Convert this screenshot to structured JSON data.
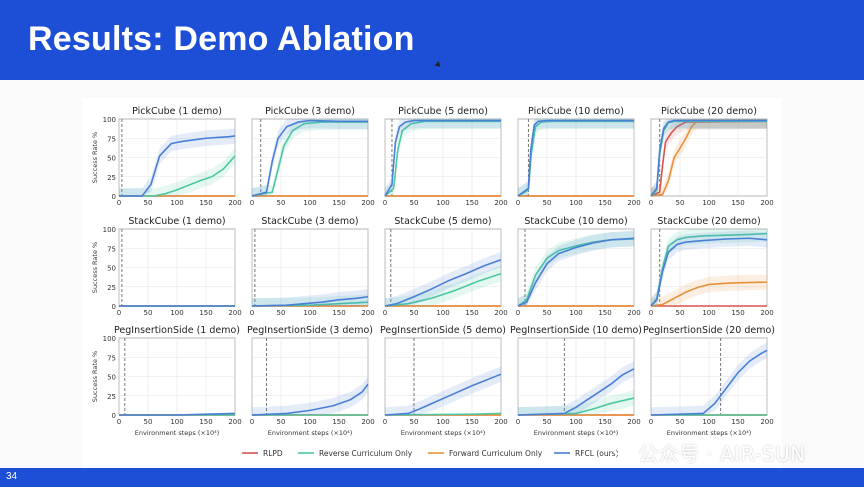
{
  "slide": {
    "title": "Results: Demo Ablation",
    "page_number": "34"
  },
  "watermark": {
    "text": "公众号 · AIR-SUN"
  },
  "figure_text": {
    "ylabel": "Success Rate %",
    "xlabel": "Environment steps (×10⁴)",
    "yticks": [
      "0",
      "25",
      "50",
      "75",
      "100"
    ],
    "xticks": [
      "0",
      "50",
      "100",
      "150",
      "200"
    ]
  },
  "legend": [
    {
      "name": "RLPD",
      "color": "#d9534f"
    },
    {
      "name": "Reverse Curriculum Only",
      "color": "#4cc9a4"
    },
    {
      "name": "Forward Curriculum Only",
      "color": "#e8913a"
    },
    {
      "name": "RFCL (ours)",
      "color": "#4a7fd6"
    }
  ],
  "chart_data": [
    {
      "type": "line",
      "title": "PickCube (1 demo)",
      "xlim": [
        0,
        200
      ],
      "ylim": [
        0,
        100
      ],
      "demo_line_x": 5,
      "series": [
        {
          "name": "RFCL (ours)",
          "x": [
            0,
            40,
            55,
            70,
            90,
            110,
            130,
            150,
            170,
            190,
            200
          ],
          "y": [
            0,
            0,
            15,
            52,
            68,
            71,
            73,
            75,
            76,
            77,
            78
          ]
        },
        {
          "name": "Reverse Curriculum Only",
          "x": [
            0,
            60,
            80,
            100,
            120,
            140,
            160,
            180,
            200
          ],
          "y": [
            0,
            0,
            3,
            8,
            14,
            20,
            25,
            35,
            52
          ]
        },
        {
          "name": "Forward Curriculum Only",
          "x": [
            0,
            200
          ],
          "y": [
            0,
            0
          ]
        },
        {
          "name": "RLPD",
          "x": [
            0,
            200
          ],
          "y": [
            0,
            0
          ]
        }
      ]
    },
    {
      "type": "line",
      "title": "PickCube (3 demo)",
      "xlim": [
        0,
        200
      ],
      "ylim": [
        0,
        100
      ],
      "demo_line_x": 15,
      "series": [
        {
          "name": "RFCL (ours)",
          "x": [
            0,
            25,
            35,
            45,
            60,
            80,
            100,
            150,
            200
          ],
          "y": [
            0,
            5,
            45,
            75,
            90,
            96,
            98,
            97,
            97
          ]
        },
        {
          "name": "Reverse Curriculum Only",
          "x": [
            0,
            35,
            45,
            55,
            70,
            90,
            120,
            200
          ],
          "y": [
            0,
            5,
            35,
            65,
            85,
            94,
            96,
            96
          ]
        },
        {
          "name": "Forward Curriculum Only",
          "x": [
            0,
            200
          ],
          "y": [
            0,
            0
          ]
        },
        {
          "name": "RLPD",
          "x": [
            0,
            200
          ],
          "y": [
            0,
            0
          ]
        }
      ]
    },
    {
      "type": "line",
      "title": "PickCube (5 demo)",
      "xlim": [
        0,
        200
      ],
      "ylim": [
        0,
        100
      ],
      "demo_line_x": 12,
      "series": [
        {
          "name": "RFCL (ours)",
          "x": [
            0,
            12,
            18,
            25,
            35,
            50,
            80,
            200
          ],
          "y": [
            0,
            15,
            70,
            90,
            96,
            98,
            98,
            98
          ]
        },
        {
          "name": "Reverse Curriculum Only",
          "x": [
            0,
            15,
            22,
            30,
            45,
            70,
            200
          ],
          "y": [
            0,
            10,
            60,
            85,
            94,
            97,
            97
          ]
        },
        {
          "name": "Forward Curriculum Only",
          "x": [
            0,
            200
          ],
          "y": [
            0,
            0
          ]
        },
        {
          "name": "RLPD",
          "x": [
            0,
            200
          ],
          "y": [
            0,
            0
          ]
        }
      ]
    },
    {
      "type": "line",
      "title": "PickCube (10 demo)",
      "xlim": [
        0,
        200
      ],
      "ylim": [
        0,
        100
      ],
      "demo_line_x": 18,
      "series": [
        {
          "name": "RFCL (ours)",
          "x": [
            0,
            18,
            22,
            28,
            35,
            50,
            200
          ],
          "y": [
            0,
            10,
            60,
            92,
            97,
            98,
            98
          ]
        },
        {
          "name": "Reverse Curriculum Only",
          "x": [
            0,
            18,
            23,
            30,
            40,
            60,
            200
          ],
          "y": [
            0,
            8,
            55,
            90,
            96,
            97,
            97
          ]
        },
        {
          "name": "Forward Curriculum Only",
          "x": [
            0,
            200
          ],
          "y": [
            0,
            0
          ]
        },
        {
          "name": "RLPD",
          "x": [
            0,
            200
          ],
          "y": [
            0,
            0
          ]
        }
      ]
    },
    {
      "type": "line",
      "title": "PickCube (20 demo)",
      "xlim": [
        0,
        200
      ],
      "ylim": [
        0,
        100
      ],
      "demo_line_x": 15,
      "series": [
        {
          "name": "RFCL (ours)",
          "x": [
            0,
            10,
            15,
            22,
            30,
            40,
            200
          ],
          "y": [
            0,
            10,
            60,
            88,
            96,
            98,
            98
          ]
        },
        {
          "name": "Reverse Curriculum Only",
          "x": [
            0,
            10,
            15,
            22,
            30,
            40,
            200
          ],
          "y": [
            0,
            8,
            55,
            85,
            95,
            97,
            97
          ]
        },
        {
          "name": "Forward Curriculum Only",
          "x": [
            0,
            20,
            30,
            40,
            50,
            60,
            70,
            80,
            200
          ],
          "y": [
            0,
            2,
            20,
            50,
            62,
            75,
            90,
            98,
            98
          ]
        },
        {
          "name": "RLPD",
          "x": [
            0,
            15,
            20,
            25,
            35,
            45,
            60,
            200
          ],
          "y": [
            0,
            5,
            40,
            70,
            82,
            90,
            96,
            97
          ]
        }
      ]
    },
    {
      "type": "line",
      "title": "StackCube (1 demo)",
      "xlim": [
        0,
        200
      ],
      "ylim": [
        0,
        100
      ],
      "demo_line_x": 5,
      "series": [
        {
          "name": "RFCL (ours)",
          "x": [
            0,
            200
          ],
          "y": [
            0,
            0
          ]
        },
        {
          "name": "Reverse Curriculum Only",
          "x": [
            0,
            200
          ],
          "y": [
            0,
            0
          ]
        },
        {
          "name": "Forward Curriculum Only",
          "x": [
            0,
            200
          ],
          "y": [
            0,
            0
          ]
        },
        {
          "name": "RLPD",
          "x": [
            0,
            200
          ],
          "y": [
            0,
            0
          ]
        }
      ]
    },
    {
      "type": "line",
      "title": "StackCube (3 demo)",
      "xlim": [
        0,
        200
      ],
      "ylim": [
        0,
        100
      ],
      "demo_line_x": 5,
      "series": [
        {
          "name": "RFCL (ours)",
          "x": [
            0,
            60,
            90,
            120,
            150,
            180,
            200
          ],
          "y": [
            0,
            1,
            3,
            5,
            8,
            10,
            12
          ]
        },
        {
          "name": "Reverse Curriculum Only",
          "x": [
            0,
            100,
            150,
            200
          ],
          "y": [
            0,
            1,
            3,
            5
          ]
        },
        {
          "name": "Forward Curriculum Only",
          "x": [
            0,
            200
          ],
          "y": [
            0,
            0
          ]
        },
        {
          "name": "RLPD",
          "x": [
            0,
            200
          ],
          "y": [
            0,
            0
          ]
        }
      ]
    },
    {
      "type": "line",
      "title": "StackCube (5 demo)",
      "xlim": [
        0,
        200
      ],
      "ylim": [
        0,
        100
      ],
      "demo_line_x": 10,
      "series": [
        {
          "name": "RFCL (ours)",
          "x": [
            0,
            20,
            50,
            80,
            110,
            140,
            170,
            200
          ],
          "y": [
            0,
            3,
            12,
            22,
            33,
            42,
            52,
            60
          ]
        },
        {
          "name": "Reverse Curriculum Only",
          "x": [
            0,
            40,
            80,
            120,
            160,
            200
          ],
          "y": [
            0,
            3,
            10,
            20,
            32,
            42
          ]
        },
        {
          "name": "Forward Curriculum Only",
          "x": [
            0,
            200
          ],
          "y": [
            0,
            0
          ]
        },
        {
          "name": "RLPD",
          "x": [
            0,
            200
          ],
          "y": [
            0,
            0
          ]
        }
      ]
    },
    {
      "type": "line",
      "title": "StackCube (10 demo)",
      "xlim": [
        0,
        200
      ],
      "ylim": [
        0,
        100
      ],
      "demo_line_x": 12,
      "series": [
        {
          "name": "RFCL (ours)",
          "x": [
            0,
            15,
            30,
            50,
            70,
            100,
            130,
            160,
            200
          ],
          "y": [
            0,
            5,
            30,
            55,
            68,
            76,
            82,
            86,
            88
          ]
        },
        {
          "name": "Reverse Curriculum Only",
          "x": [
            0,
            15,
            30,
            50,
            70,
            100,
            130,
            160,
            200
          ],
          "y": [
            0,
            8,
            40,
            62,
            72,
            78,
            83,
            86,
            87
          ]
        },
        {
          "name": "Forward Curriculum Only",
          "x": [
            0,
            200
          ],
          "y": [
            0,
            0
          ]
        },
        {
          "name": "RLPD",
          "x": [
            0,
            200
          ],
          "y": [
            0,
            0
          ]
        }
      ]
    },
    {
      "type": "line",
      "title": "StackCube (20 demo)",
      "xlim": [
        0,
        200
      ],
      "ylim": [
        0,
        100
      ],
      "demo_line_x": 15,
      "series": [
        {
          "name": "RFCL (ours)",
          "x": [
            0,
            10,
            20,
            30,
            45,
            60,
            90,
            130,
            170,
            200
          ],
          "y": [
            0,
            8,
            45,
            70,
            80,
            83,
            85,
            87,
            88,
            86
          ]
        },
        {
          "name": "Reverse Curriculum Only",
          "x": [
            0,
            10,
            20,
            30,
            45,
            60,
            90,
            130,
            170,
            200
          ],
          "y": [
            0,
            10,
            50,
            78,
            86,
            89,
            91,
            92,
            93,
            94
          ]
        },
        {
          "name": "Forward Curriculum Only",
          "x": [
            0,
            20,
            40,
            60,
            80,
            100,
            140,
            200
          ],
          "y": [
            0,
            2,
            10,
            18,
            24,
            28,
            30,
            31
          ]
        },
        {
          "name": "RLPD",
          "x": [
            0,
            200
          ],
          "y": [
            0,
            0
          ]
        }
      ]
    },
    {
      "type": "line",
      "title": "PegInsertionSide (1 demo)",
      "xlim": [
        0,
        200
      ],
      "ylim": [
        0,
        100
      ],
      "demo_line_x": 10,
      "series": [
        {
          "name": "RFCL (ours)",
          "x": [
            0,
            100,
            150,
            200
          ],
          "y": [
            0,
            0,
            1,
            2
          ]
        },
        {
          "name": "Reverse Curriculum Only",
          "x": [
            0,
            200
          ],
          "y": [
            0,
            0
          ]
        },
        {
          "name": "Forward Curriculum Only",
          "x": [
            0,
            200
          ],
          "y": [
            0,
            0
          ]
        },
        {
          "name": "RLPD",
          "x": [
            0,
            200
          ],
          "y": [
            0,
            0
          ]
        }
      ]
    },
    {
      "type": "line",
      "title": "PegInsertionSide (3 demo)",
      "xlim": [
        0,
        200
      ],
      "ylim": [
        0,
        100
      ],
      "demo_line_x": 25,
      "series": [
        {
          "name": "RFCL (ours)",
          "x": [
            0,
            60,
            100,
            140,
            170,
            190,
            200
          ],
          "y": [
            0,
            2,
            6,
            12,
            20,
            30,
            40
          ]
        },
        {
          "name": "Reverse Curriculum Only",
          "x": [
            0,
            200
          ],
          "y": [
            0,
            0
          ]
        },
        {
          "name": "Forward Curriculum Only",
          "x": [
            0,
            200
          ],
          "y": [
            0,
            0
          ]
        },
        {
          "name": "RLPD",
          "x": [
            0,
            200
          ],
          "y": [
            0,
            0
          ]
        }
      ]
    },
    {
      "type": "line",
      "title": "PegInsertionSide (5 demo)",
      "xlim": [
        0,
        200
      ],
      "ylim": [
        0,
        100
      ],
      "demo_line_x": 50,
      "series": [
        {
          "name": "RFCL (ours)",
          "x": [
            0,
            40,
            60,
            90,
            120,
            150,
            180,
            200
          ],
          "y": [
            0,
            2,
            8,
            18,
            28,
            38,
            47,
            53
          ]
        },
        {
          "name": "Reverse Curriculum Only",
          "x": [
            0,
            150,
            200
          ],
          "y": [
            0,
            1,
            2
          ]
        },
        {
          "name": "Forward Curriculum Only",
          "x": [
            0,
            200
          ],
          "y": [
            0,
            0
          ]
        },
        {
          "name": "RLPD",
          "x": [
            0,
            200
          ],
          "y": [
            0,
            0
          ]
        }
      ]
    },
    {
      "type": "line",
      "title": "PegInsertionSide (10 demo)",
      "xlim": [
        0,
        200
      ],
      "ylim": [
        0,
        100
      ],
      "demo_line_x": 80,
      "series": [
        {
          "name": "RFCL (ours)",
          "x": [
            0,
            80,
            100,
            120,
            140,
            160,
            180,
            200
          ],
          "y": [
            0,
            2,
            10,
            20,
            30,
            40,
            52,
            60
          ]
        },
        {
          "name": "Reverse Curriculum Only",
          "x": [
            0,
            100,
            130,
            160,
            200
          ],
          "y": [
            0,
            2,
            8,
            15,
            22
          ]
        },
        {
          "name": "Forward Curriculum Only",
          "x": [
            0,
            200
          ],
          "y": [
            0,
            0
          ]
        },
        {
          "name": "RLPD",
          "x": [
            0,
            200
          ],
          "y": [
            0,
            0
          ]
        }
      ]
    },
    {
      "type": "line",
      "title": "PegInsertionSide (20 demo)",
      "xlim": [
        0,
        200
      ],
      "ylim": [
        0,
        100
      ],
      "demo_line_x": 120,
      "series": [
        {
          "name": "RFCL (ours)",
          "x": [
            0,
            90,
            110,
            130,
            150,
            170,
            190,
            200
          ],
          "y": [
            0,
            2,
            15,
            35,
            55,
            70,
            80,
            84
          ]
        },
        {
          "name": "Reverse Curriculum Only",
          "x": [
            0,
            200
          ],
          "y": [
            0,
            0
          ]
        },
        {
          "name": "Forward Curriculum Only",
          "x": [
            0,
            200
          ],
          "y": [
            0,
            0
          ]
        },
        {
          "name": "RLPD",
          "x": [
            0,
            200
          ],
          "y": [
            0,
            0
          ]
        }
      ]
    }
  ]
}
